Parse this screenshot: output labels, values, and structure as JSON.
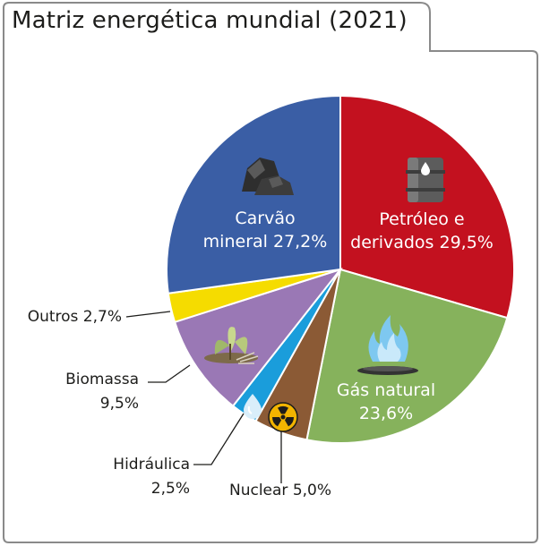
{
  "title": "Matriz energética mundial (2021)",
  "chart_data": {
    "type": "pie",
    "title": "Matriz energética mundial (2021)",
    "unit": "%",
    "slices": [
      {
        "key": "petroleo",
        "label": [
          "Petróleo e",
          "derivados 29,5%"
        ],
        "value": 29.5,
        "color": "#c3111f",
        "icon": "oil-barrel-icon",
        "label_side": "inside"
      },
      {
        "key": "gas",
        "label": [
          "Gás natural",
          "23,6%"
        ],
        "value": 23.6,
        "color": "#86b25c",
        "icon": "gas-flame-icon",
        "label_side": "inside"
      },
      {
        "key": "nuclear",
        "label": [
          "Nuclear 5,0%"
        ],
        "value": 5.0,
        "color": "#8b5a35",
        "icon": "radiation-icon",
        "label_side": "outside"
      },
      {
        "key": "hidraulica",
        "label": [
          "Hidráulica",
          "2,5%"
        ],
        "value": 2.5,
        "color": "#1a9ddb",
        "icon": "water-drop-icon",
        "label_side": "outside"
      },
      {
        "key": "biomassa",
        "label": [
          "Biomassa",
          "9,5%"
        ],
        "value": 9.5,
        "color": "#9a78b5",
        "icon": "plant-icon",
        "label_side": "outside"
      },
      {
        "key": "outros",
        "label": [
          "Outros 2,7%"
        ],
        "value": 2.7,
        "color": "#f5dc00",
        "icon": "",
        "label_side": "outside"
      },
      {
        "key": "carvao",
        "label": [
          "Carvão",
          "mineral 27,2%"
        ],
        "value": 27.2,
        "color": "#3a5ea5",
        "icon": "coal-icon",
        "label_side": "inside"
      }
    ]
  }
}
